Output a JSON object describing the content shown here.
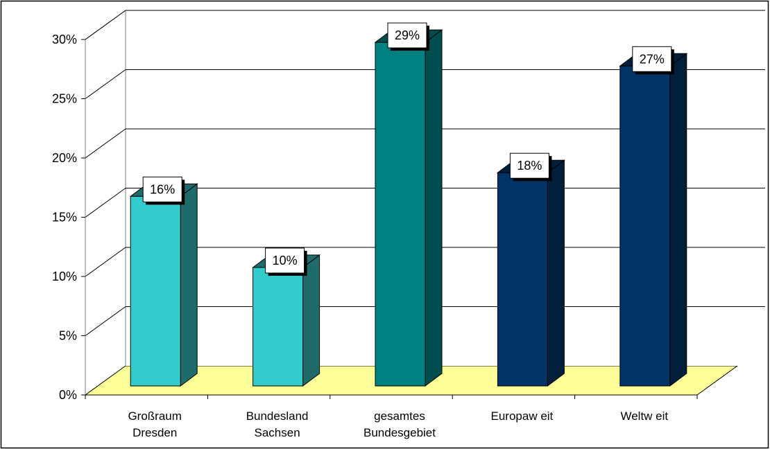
{
  "chart_data": {
    "type": "bar",
    "title": "",
    "xlabel": "",
    "ylabel": "",
    "categories": [
      [
        "Großraum",
        "Dresden"
      ],
      [
        "Bundesland",
        "Sachsen"
      ],
      [
        "gesamtes",
        "Bundesgebiet"
      ],
      [
        "Europaw eit"
      ],
      [
        "Weltw eit"
      ]
    ],
    "values": [
      16,
      10,
      29,
      18,
      27
    ],
    "data_labels": [
      "16%",
      "10%",
      "29%",
      "18%",
      "27%"
    ],
    "ylim": [
      0,
      30
    ],
    "yticks": [
      0,
      5,
      10,
      15,
      20,
      25,
      30
    ],
    "ytick_labels": [
      "0%",
      "5%",
      "10%",
      "15%",
      "20%",
      "25%",
      "30%"
    ],
    "grid": true,
    "legend": "none",
    "colors": {
      "bar_front": [
        "#33CCCC",
        "#33CCCC",
        "#008080",
        "#003366",
        "#003366"
      ],
      "bar_side": [
        "#1F6B6B",
        "#1F6B6B",
        "#004D4D",
        "#001F3D",
        "#001F3D"
      ],
      "floor": "#FFFF99",
      "wall": "#FFFFFF",
      "grid": "#000000"
    }
  }
}
